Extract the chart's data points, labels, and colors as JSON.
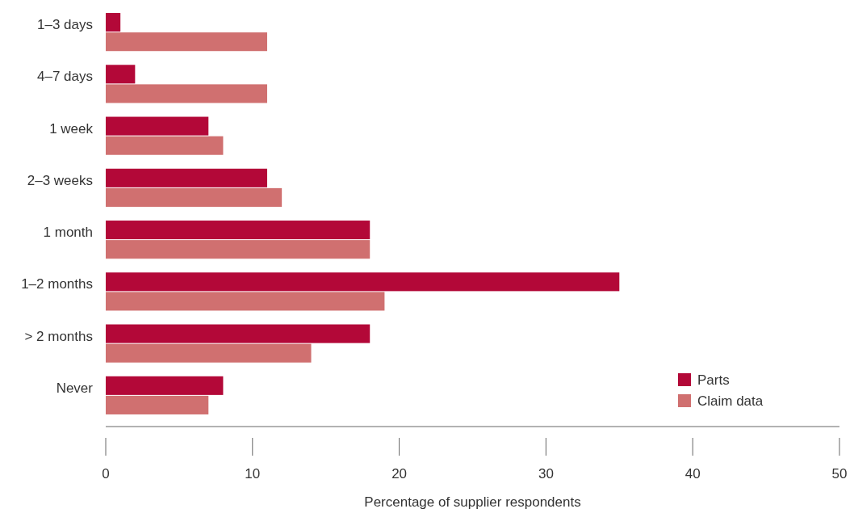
{
  "chart_data": {
    "type": "bar",
    "orientation": "horizontal",
    "xlabel": "Percentage of supplier respondents",
    "categories": [
      "1–3 days",
      "4–7 days",
      "1 week",
      "2–3 weeks",
      "1 month",
      "1–2 months",
      "> 2 months",
      "Never"
    ],
    "series": [
      {
        "name": "Parts",
        "color": "#b30838",
        "values": [
          1,
          2,
          7,
          11,
          18,
          35,
          18,
          8
        ]
      },
      {
        "name": "Claim data",
        "color": "#d07070",
        "values": [
          11,
          11,
          8,
          12,
          18,
          19,
          14,
          7
        ]
      }
    ],
    "xlim": [
      0,
      50
    ],
    "xticks": [
      0,
      10,
      20,
      30,
      40,
      50
    ],
    "grid": false,
    "legend": "bottom right"
  }
}
